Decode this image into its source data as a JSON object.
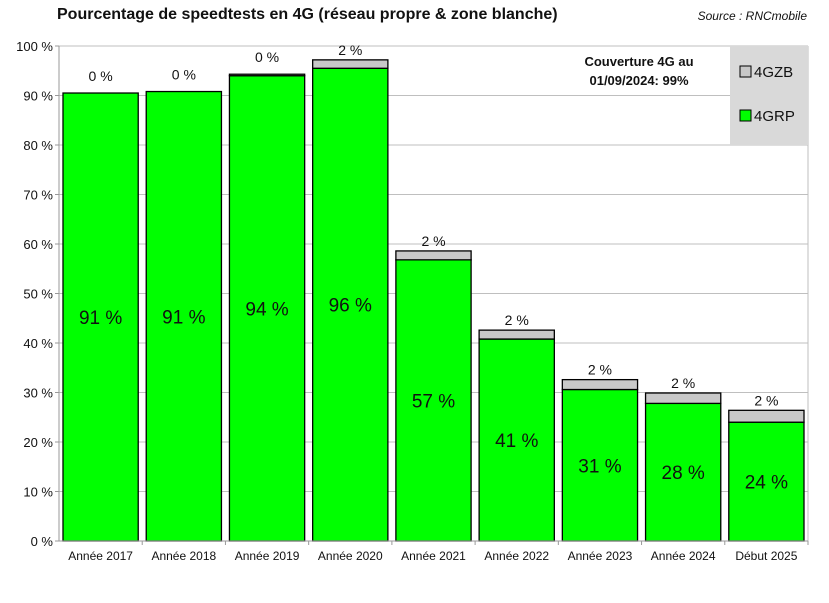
{
  "chart_data": {
    "type": "bar",
    "stacked": true,
    "title": "Pourcentage de speedtests en 4G (réseau propre & zone blanche)",
    "source": "Source : RNCmobile",
    "annotation": [
      "Couverture 4G au",
      "01/09/2024: 99%"
    ],
    "categories": [
      "Année 2017",
      "Année 2018",
      "Année 2019",
      "Année 2020",
      "Année 2021",
      "Année 2022",
      "Année 2023",
      "Année 2024",
      "Début 2025"
    ],
    "series": [
      {
        "name": "4GRP",
        "color": "#00ff00",
        "values": [
          90.5,
          90.8,
          94.0,
          95.5,
          56.8,
          40.8,
          30.6,
          27.8,
          24.0
        ],
        "labels": [
          "91 %",
          "91 %",
          "94 %",
          "96 %",
          "57 %",
          "41 %",
          "31 %",
          "28 %",
          "24 %"
        ]
      },
      {
        "name": "4GZB",
        "color": "#c8c8c8",
        "values": [
          0.0,
          0.0,
          0.3,
          1.7,
          1.8,
          1.8,
          2.0,
          2.1,
          2.4
        ],
        "labels": [
          "0 %",
          "0 %",
          "0 %",
          "2 %",
          "2 %",
          "2 %",
          "2 %",
          "2 %",
          "2 %"
        ]
      }
    ],
    "legend": [
      "4GZB",
      "4GRP"
    ],
    "legend_position": "top-right",
    "ylim": [
      0,
      100
    ],
    "yticks": [
      0,
      10,
      20,
      30,
      40,
      50,
      60,
      70,
      80,
      90,
      100
    ],
    "ytick_labels": [
      "0 %",
      "10 %",
      "20 %",
      "30 %",
      "40 %",
      "50 %",
      "60 %",
      "70 %",
      "80 %",
      "90 %",
      "100 %"
    ],
    "grid": true,
    "xlabel": "",
    "ylabel": ""
  }
}
